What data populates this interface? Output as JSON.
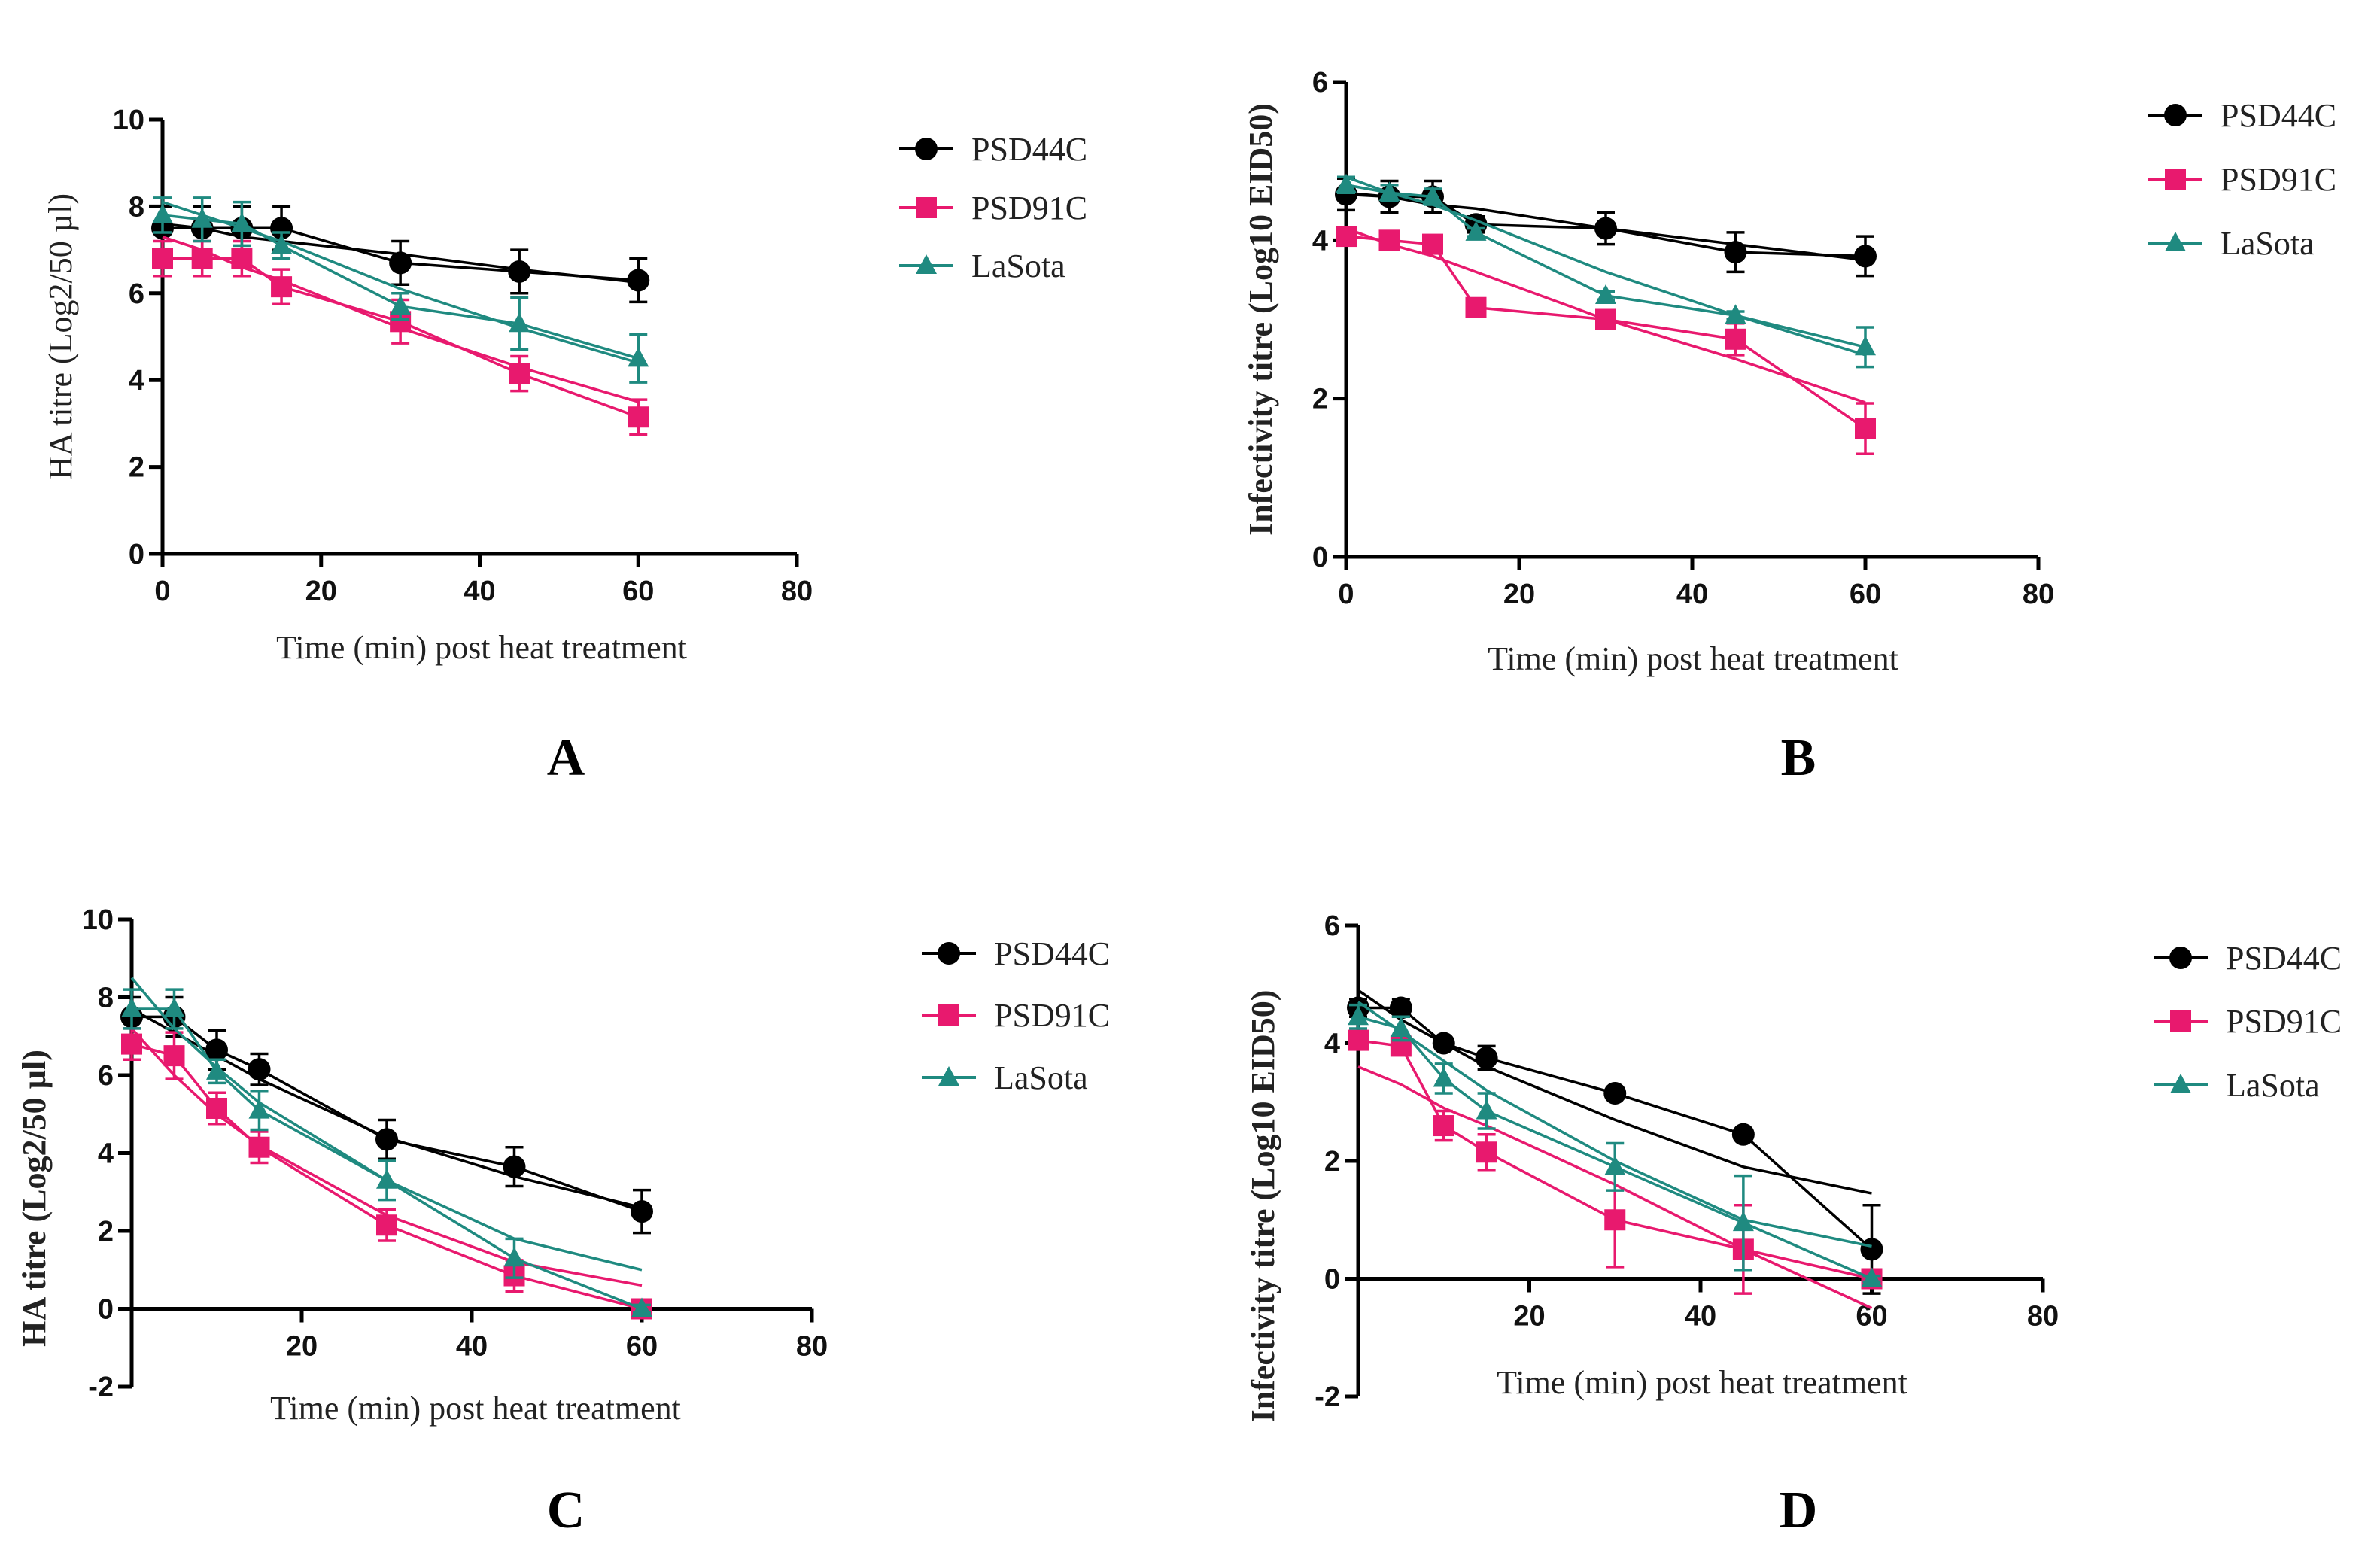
{
  "colors": {
    "PSD44C": "#000000",
    "PSD91C": "#e8196e",
    "LaSota": "#1f8a80"
  },
  "chart_data": [
    {
      "type": "line",
      "panel": "A",
      "xlabel": "Time (min) post heat treatment",
      "ylabel": "HA titre (Log2/50 µl)",
      "xlim": [
        0,
        80
      ],
      "ylim": [
        0,
        10
      ],
      "xticks": [
        "0",
        "20",
        "40",
        "60",
        "80"
      ],
      "yticks": [
        "0",
        "2",
        "4",
        "6",
        "8",
        "10"
      ],
      "x": [
        0,
        5,
        10,
        15,
        30,
        45,
        60
      ],
      "series": [
        {
          "name": "PSD44C",
          "marker": "circle",
          "values": [
            7.5,
            7.5,
            7.5,
            7.5,
            6.7,
            6.5,
            6.3
          ],
          "err": [
            0.5,
            0.5,
            0.5,
            0.5,
            0.5,
            0.5,
            0.5
          ],
          "fit": [
            7.6,
            7.5,
            7.3,
            7.2,
            6.9,
            6.55,
            6.25
          ]
        },
        {
          "name": "PSD91C",
          "marker": "square",
          "values": [
            6.8,
            6.8,
            6.8,
            6.15,
            5.35,
            4.15,
            3.15
          ],
          "err": [
            0.4,
            0.4,
            0.4,
            0.4,
            0.5,
            0.4,
            0.4
          ],
          "fit": [
            7.3,
            7.0,
            6.6,
            6.3,
            5.2,
            4.3,
            3.5
          ]
        },
        {
          "name": "LaSota",
          "marker": "triangle",
          "values": [
            7.8,
            7.7,
            7.6,
            7.1,
            5.7,
            5.3,
            4.5
          ],
          "err": [
            0.4,
            0.5,
            0.5,
            0.3,
            0.3,
            0.6,
            0.55
          ],
          "fit": [
            8.1,
            7.8,
            7.5,
            7.2,
            6.1,
            5.2,
            4.4
          ]
        }
      ]
    },
    {
      "type": "line",
      "panel": "B",
      "xlabel": "Time (min) post heat treatment",
      "ylabel": "Infectivity titre (Log10 EID50)",
      "xlim": [
        0,
        80
      ],
      "ylim": [
        0,
        6
      ],
      "xticks": [
        "0",
        "20",
        "40",
        "60",
        "80"
      ],
      "yticks": [
        "0",
        "2",
        "4",
        "6"
      ],
      "x": [
        0,
        5,
        10,
        15,
        30,
        45,
        60
      ],
      "series": [
        {
          "name": "PSD44C",
          "marker": "circle",
          "values": [
            4.58,
            4.55,
            4.55,
            4.2,
            4.15,
            3.85,
            3.8
          ],
          "err": [
            0.2,
            0.2,
            0.2,
            0.1,
            0.2,
            0.25,
            0.25
          ],
          "fit": [
            4.6,
            4.55,
            4.45,
            4.4,
            4.15,
            3.95,
            3.75
          ]
        },
        {
          "name": "PSD91C",
          "marker": "square",
          "values": [
            4.05,
            4.0,
            3.95,
            3.15,
            3.0,
            2.75,
            1.62
          ],
          "err": [
            0.1,
            0.1,
            0.05,
            0.05,
            0.1,
            0.2,
            0.32
          ],
          "fit": [
            4.15,
            3.95,
            3.8,
            3.6,
            3.0,
            2.5,
            1.95
          ]
        },
        {
          "name": "LaSota",
          "marker": "triangle",
          "values": [
            4.7,
            4.6,
            4.55,
            4.1,
            3.3,
            3.05,
            2.65
          ],
          "err": [
            0.1,
            0.1,
            0.1,
            0.05,
            0.05,
            0.05,
            0.25
          ],
          "fit": [
            4.8,
            4.6,
            4.45,
            4.25,
            3.6,
            3.05,
            2.55
          ]
        }
      ]
    },
    {
      "type": "line",
      "panel": "C",
      "xlabel": "Time (min) post heat treatment",
      "ylabel": "HA titre (Log2/50 µl)",
      "xlim": [
        0,
        80
      ],
      "ylim": [
        -2,
        10
      ],
      "xticks": [
        "20",
        "40",
        "60",
        "80"
      ],
      "yticks": [
        "-2",
        "0",
        "2",
        "4",
        "6",
        "8",
        "10"
      ],
      "x": [
        0,
        5,
        10,
        15,
        30,
        45,
        60
      ],
      "series": [
        {
          "name": "PSD44C",
          "marker": "circle",
          "values": [
            7.5,
            7.5,
            6.65,
            6.15,
            4.35,
            3.65,
            2.5
          ],
          "err": [
            0.5,
            0.5,
            0.5,
            0.4,
            0.5,
            0.5,
            0.55
          ],
          "fit": [
            7.7,
            7.1,
            6.5,
            5.9,
            4.4,
            3.4,
            2.6
          ]
        },
        {
          "name": "PSD91C",
          "marker": "square",
          "values": [
            6.8,
            6.5,
            5.15,
            4.15,
            2.15,
            0.85,
            0
          ],
          "err": [
            0.4,
            0.6,
            0.4,
            0.4,
            0.4,
            0.4,
            0.1
          ],
          "fit": [
            7.2,
            6.0,
            5.0,
            4.2,
            2.4,
            1.2,
            0.6
          ]
        },
        {
          "name": "LaSota",
          "marker": "triangle",
          "values": [
            7.7,
            7.7,
            6.1,
            5.1,
            3.3,
            1.3,
            0
          ],
          "err": [
            0.5,
            0.5,
            0.3,
            0.5,
            0.5,
            0.5,
            0.1
          ],
          "fit": [
            8.5,
            7.2,
            6.2,
            5.3,
            3.3,
            1.8,
            1.0
          ]
        }
      ]
    },
    {
      "type": "line",
      "panel": "D",
      "xlabel": "Time (min) post heat treatment",
      "ylabel": "Infectivity titre (Log10 EID50)",
      "xlim": [
        0,
        80
      ],
      "ylim": [
        -2,
        6
      ],
      "xticks": [
        "20",
        "40",
        "60",
        "80"
      ],
      "yticks": [
        "-2",
        "0",
        "2",
        "4",
        "6"
      ],
      "x": [
        0,
        5,
        10,
        15,
        30,
        45,
        60
      ],
      "series": [
        {
          "name": "PSD44C",
          "marker": "circle",
          "values": [
            4.6,
            4.6,
            4.0,
            3.75,
            3.15,
            2.45,
            0.5
          ],
          "err": [
            0.15,
            0.15,
            0.05,
            0.2,
            0.05,
            0.05,
            0.75
          ],
          "fit": [
            4.9,
            4.4,
            4.0,
            3.6,
            2.7,
            1.9,
            1.45
          ]
        },
        {
          "name": "PSD91C",
          "marker": "square",
          "values": [
            4.05,
            3.95,
            2.6,
            2.15,
            1.0,
            0.5,
            0
          ],
          "err": [
            0.1,
            0.1,
            0.25,
            0.3,
            0.8,
            0.75,
            0.05
          ],
          "fit": [
            3.6,
            3.3,
            2.9,
            2.6,
            1.6,
            0.5,
            -0.5
          ]
        },
        {
          "name": "LaSota",
          "marker": "triangle",
          "values": [
            4.45,
            4.25,
            3.4,
            2.85,
            1.9,
            0.95,
            0
          ],
          "err": [
            0.2,
            0.2,
            0.25,
            0.3,
            0.4,
            0.8,
            0.05
          ],
          "fit": [
            4.7,
            4.2,
            3.7,
            3.2,
            2.0,
            1.0,
            0.55
          ]
        }
      ]
    }
  ]
}
